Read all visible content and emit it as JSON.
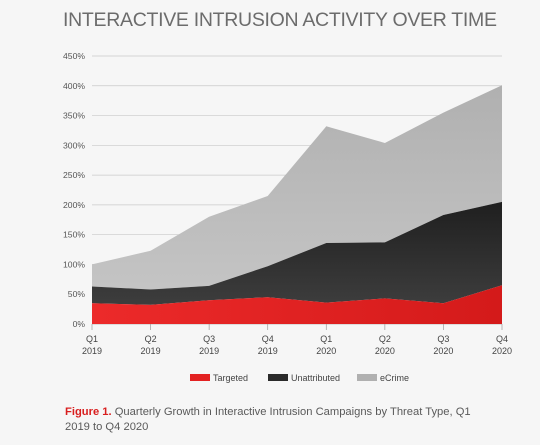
{
  "title": "INTERACTIVE INTRUSION ACTIVITY OVER TIME",
  "caption": {
    "figure_label": "Figure 1.",
    "text": "Quarterly Growth in Interactive Intrusion Campaigns by Threat Type, Q1 2019 to Q4 2020"
  },
  "chart_data": {
    "type": "area",
    "stacked": true,
    "title": "INTERACTIVE INTRUSION ACTIVITY OVER TIME",
    "categories": [
      [
        "Q1",
        "2019"
      ],
      [
        "Q2",
        "2019"
      ],
      [
        "Q3",
        "2019"
      ],
      [
        "Q4",
        "2019"
      ],
      [
        "Q1",
        "2020"
      ],
      [
        "Q2",
        "2020"
      ],
      [
        "Q3",
        "2020"
      ],
      [
        "Q4",
        "2020"
      ]
    ],
    "ylim": [
      0,
      450
    ],
    "yticks": [
      0,
      50,
      100,
      150,
      200,
      250,
      300,
      350,
      400,
      450
    ],
    "ytick_labels": [
      "0%",
      "50%",
      "100%",
      "150%",
      "200%",
      "250%",
      "300%",
      "350%",
      "400%",
      "450%"
    ],
    "grid": true,
    "legend_position": "bottom",
    "series": [
      {
        "name": "Targeted",
        "color": "#e32222",
        "values": [
          35,
          32,
          40,
          45,
          36,
          43,
          35,
          65
        ]
      },
      {
        "name": "Unattributed",
        "color": "#333333",
        "values": [
          28,
          26,
          24,
          52,
          100,
          94,
          148,
          140
        ]
      },
      {
        "name": "eCrime",
        "color": "#b7b7b7",
        "values": [
          37,
          65,
          116,
          118,
          196,
          167,
          172,
          196
        ]
      }
    ]
  }
}
